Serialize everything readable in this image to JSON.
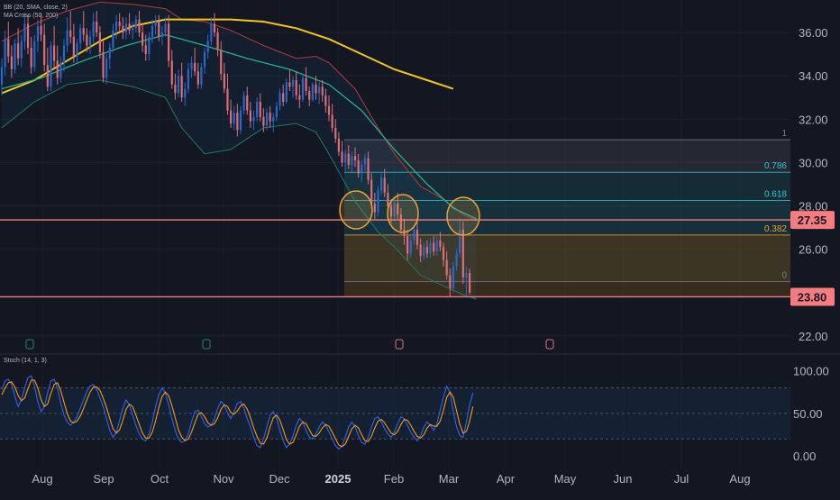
{
  "legend": {
    "bb_label": "BB (20, SMA, close, 2)",
    "ma_label": "MA Cross (50, 200)",
    "stoch_label": "Stoch (14, 1, 3)"
  },
  "colors": {
    "background": "#131722",
    "bull": "#2a67c9",
    "bear": "#e06d75",
    "ma200": "#f5c518",
    "ma50": "#22b38a",
    "bb": "#1f5f4f",
    "stoch_k": "#2962ff",
    "stoch_d": "#ff9800",
    "level_line": "#f77c80",
    "fib_band": "#8a5a14"
  },
  "chart_data": {
    "type": "candlestick",
    "x_ticks": [
      "Aug",
      "Sep",
      "Oct",
      "Nov",
      "Dec",
      "2025",
      "Feb",
      "Mar",
      "Apr",
      "May",
      "Jun",
      "Jul",
      "Aug"
    ],
    "y_ticks": [
      "36.00",
      "34.00",
      "32.00",
      "30.00",
      "28.00",
      "26.00",
      "22.00"
    ],
    "ylim": [
      21.2,
      37.5
    ],
    "price_labels": [
      {
        "id": "upper",
        "text": "27.35",
        "value": 27.35
      },
      {
        "id": "lower",
        "text": "23.80",
        "value": 23.8
      }
    ],
    "fib_levels": [
      {
        "label": "1",
        "value": 31.05
      },
      {
        "label": "0.786",
        "value": 29.55
      },
      {
        "label": "0.618",
        "value": 28.25
      },
      {
        "label": "0.382",
        "value": 26.65
      },
      {
        "label": "0",
        "value": 24.5
      }
    ],
    "candles_ohlc": [
      [
        33.6,
        34.8,
        33.1,
        34.4
      ],
      [
        34.4,
        36.1,
        34.0,
        35.7
      ],
      [
        35.7,
        36.5,
        34.6,
        34.9
      ],
      [
        34.9,
        35.4,
        33.9,
        34.3
      ],
      [
        34.3,
        35.7,
        34.1,
        35.5
      ],
      [
        35.5,
        36.2,
        34.5,
        34.8
      ],
      [
        34.8,
        35.9,
        34.4,
        35.6
      ],
      [
        35.6,
        36.9,
        35.2,
        36.4
      ],
      [
        36.4,
        36.8,
        35.0,
        35.3
      ],
      [
        35.3,
        35.8,
        34.1,
        34.4
      ],
      [
        34.4,
        35.9,
        34.2,
        35.6
      ],
      [
        35.6,
        36.6,
        35.1,
        36.3
      ],
      [
        36.3,
        36.9,
        35.6,
        35.9
      ],
      [
        35.9,
        36.4,
        34.2,
        34.5
      ],
      [
        34.5,
        35.3,
        33.3,
        33.5
      ],
      [
        33.5,
        35.6,
        33.3,
        35.4
      ],
      [
        35.4,
        36.3,
        34.4,
        34.7
      ],
      [
        34.7,
        35.4,
        33.6,
        33.9
      ],
      [
        33.9,
        34.9,
        33.7,
        34.6
      ],
      [
        34.6,
        35.7,
        34.2,
        35.4
      ],
      [
        35.4,
        36.7,
        35.1,
        36.1
      ],
      [
        36.1,
        37.0,
        35.5,
        35.8
      ],
      [
        35.8,
        36.4,
        34.6,
        34.9
      ],
      [
        34.9,
        35.7,
        34.6,
        35.5
      ],
      [
        35.5,
        36.4,
        35.2,
        36.2
      ],
      [
        36.2,
        37.0,
        35.6,
        35.9
      ],
      [
        35.9,
        36.2,
        35.1,
        35.4
      ],
      [
        35.4,
        36.1,
        35.0,
        35.8
      ],
      [
        35.8,
        36.9,
        35.5,
        36.5
      ],
      [
        36.5,
        37.0,
        35.8,
        36.0
      ],
      [
        36.0,
        36.3,
        34.8,
        35.1
      ],
      [
        35.1,
        35.6,
        33.7,
        33.9
      ],
      [
        33.9,
        35.0,
        33.6,
        34.8
      ],
      [
        34.8,
        35.5,
        34.3,
        35.3
      ],
      [
        35.3,
        36.4,
        35.1,
        36.1
      ],
      [
        36.1,
        36.8,
        35.7,
        36.5
      ],
      [
        36.5,
        36.9,
        36.0,
        36.3
      ],
      [
        36.3,
        36.7,
        35.7,
        36.0
      ],
      [
        36.0,
        36.7,
        35.7,
        36.4
      ],
      [
        36.4,
        36.9,
        35.9,
        36.1
      ],
      [
        36.1,
        36.5,
        35.7,
        36.2
      ],
      [
        36.2,
        36.8,
        36.0,
        36.6
      ],
      [
        36.6,
        37.0,
        35.8,
        36.0
      ],
      [
        36.0,
        36.4,
        35.1,
        35.4
      ],
      [
        35.4,
        35.9,
        34.7,
        35.0
      ],
      [
        35.0,
        36.0,
        34.7,
        35.8
      ],
      [
        35.8,
        36.6,
        35.5,
        36.3
      ],
      [
        36.3,
        36.8,
        35.9,
        36.5
      ],
      [
        36.5,
        36.8,
        35.6,
        35.8
      ],
      [
        35.8,
        36.3,
        35.4,
        36.0
      ],
      [
        36.0,
        36.7,
        35.8,
        36.4
      ],
      [
        36.4,
        36.8,
        34.4,
        34.7
      ],
      [
        34.7,
        35.2,
        33.4,
        33.6
      ],
      [
        33.6,
        34.1,
        32.9,
        33.2
      ],
      [
        33.2,
        34.3,
        33.0,
        34.0
      ],
      [
        34.0,
        34.6,
        32.8,
        33.0
      ],
      [
        33.0,
        33.7,
        32.6,
        33.4
      ],
      [
        33.4,
        34.6,
        33.2,
        34.3
      ],
      [
        34.3,
        34.9,
        33.9,
        34.6
      ],
      [
        34.6,
        35.3,
        34.0,
        34.2
      ],
      [
        34.2,
        34.6,
        33.4,
        33.6
      ],
      [
        33.6,
        34.6,
        33.4,
        34.4
      ],
      [
        34.4,
        35.3,
        34.1,
        35.1
      ],
      [
        35.1,
        35.9,
        34.8,
        35.6
      ],
      [
        35.6,
        36.7,
        35.4,
        36.4
      ],
      [
        36.4,
        36.9,
        35.8,
        36.0
      ],
      [
        36.0,
        36.2,
        34.9,
        35.2
      ],
      [
        35.2,
        35.6,
        33.8,
        34.1
      ],
      [
        34.1,
        34.6,
        33.2,
        33.4
      ],
      [
        33.4,
        34.1,
        32.2,
        32.4
      ],
      [
        32.4,
        32.9,
        31.6,
        31.8
      ],
      [
        31.8,
        32.6,
        31.5,
        32.3
      ],
      [
        32.3,
        32.7,
        31.2,
        31.5
      ],
      [
        31.5,
        32.6,
        31.3,
        32.4
      ],
      [
        32.4,
        33.3,
        32.2,
        33.1
      ],
      [
        33.1,
        33.5,
        32.2,
        32.4
      ],
      [
        32.4,
        32.8,
        31.6,
        31.9
      ],
      [
        31.9,
        32.4,
        31.5,
        32.1
      ],
      [
        32.1,
        33.0,
        31.9,
        32.8
      ],
      [
        32.8,
        33.2,
        31.9,
        32.1
      ],
      [
        32.1,
        32.5,
        31.4,
        31.7
      ],
      [
        31.7,
        32.5,
        31.5,
        32.3
      ],
      [
        32.3,
        32.6,
        31.6,
        31.9
      ],
      [
        31.9,
        32.3,
        31.4,
        32.1
      ],
      [
        32.1,
        32.8,
        31.9,
        32.6
      ],
      [
        32.6,
        33.4,
        32.4,
        33.2
      ],
      [
        33.2,
        33.6,
        32.6,
        32.8
      ],
      [
        32.8,
        33.9,
        32.7,
        33.7
      ],
      [
        33.7,
        34.3,
        33.3,
        33.5
      ],
      [
        33.5,
        34.0,
        33.0,
        33.8
      ],
      [
        33.8,
        34.2,
        32.9,
        33.1
      ],
      [
        33.1,
        33.6,
        32.5,
        32.9
      ],
      [
        32.9,
        34.1,
        32.8,
        33.9
      ],
      [
        33.9,
        34.4,
        33.1,
        33.3
      ],
      [
        33.3,
        33.5,
        32.6,
        32.9
      ],
      [
        32.9,
        33.7,
        32.8,
        33.6
      ],
      [
        33.6,
        34.0,
        32.9,
        33.2
      ],
      [
        33.2,
        33.7,
        32.7,
        33.5
      ],
      [
        33.5,
        33.8,
        32.8,
        33.1
      ],
      [
        33.1,
        33.4,
        32.3,
        32.6
      ],
      [
        32.6,
        33.1,
        31.9,
        32.2
      ],
      [
        32.2,
        32.7,
        31.4,
        31.6
      ],
      [
        31.6,
        32.0,
        30.9,
        31.1
      ],
      [
        31.1,
        31.4,
        30.3,
        30.5
      ],
      [
        30.5,
        31.0,
        29.8,
        30.0
      ],
      [
        30.0,
        30.6,
        29.6,
        30.4
      ],
      [
        30.4,
        30.8,
        29.7,
        29.9
      ],
      [
        29.9,
        30.5,
        29.5,
        30.3
      ],
      [
        30.3,
        30.7,
        29.8,
        30.1
      ],
      [
        30.1,
        30.4,
        29.3,
        29.5
      ],
      [
        29.5,
        30.1,
        29.1,
        29.9
      ],
      [
        29.9,
        30.4,
        29.6,
        30.2
      ],
      [
        30.2,
        30.5,
        29.0,
        29.2
      ],
      [
        29.2,
        29.5,
        27.9,
        28.1
      ],
      [
        28.1,
        28.6,
        27.4,
        27.7
      ],
      [
        27.7,
        28.9,
        27.5,
        28.7
      ],
      [
        28.7,
        29.5,
        28.5,
        29.3
      ],
      [
        29.3,
        29.7,
        28.4,
        28.6
      ],
      [
        28.6,
        29.0,
        27.8,
        28.0
      ],
      [
        28.0,
        28.3,
        27.2,
        27.5
      ],
      [
        27.5,
        28.4,
        27.3,
        28.1
      ],
      [
        28.1,
        28.6,
        27.4,
        27.6
      ],
      [
        27.6,
        27.9,
        26.7,
        26.9
      ],
      [
        26.9,
        27.4,
        26.2,
        26.6
      ],
      [
        26.6,
        26.9,
        25.5,
        25.8
      ],
      [
        25.8,
        26.6,
        25.6,
        26.4
      ],
      [
        26.4,
        27.1,
        26.2,
        26.9
      ],
      [
        26.9,
        27.3,
        26.0,
        26.2
      ],
      [
        26.2,
        26.5,
        25.4,
        25.7
      ],
      [
        25.7,
        26.3,
        25.5,
        26.1
      ],
      [
        26.1,
        26.4,
        25.6,
        25.8
      ],
      [
        25.8,
        26.5,
        25.6,
        26.3
      ],
      [
        26.3,
        26.6,
        25.7,
        25.9
      ],
      [
        25.9,
        26.6,
        25.7,
        26.4
      ],
      [
        26.4,
        26.8,
        25.9,
        26.1
      ],
      [
        26.1,
        26.3,
        25.2,
        25.5
      ],
      [
        25.5,
        25.9,
        24.6,
        24.8
      ],
      [
        24.8,
        25.1,
        23.8,
        24.2
      ],
      [
        24.2,
        25.4,
        24.0,
        25.2
      ],
      [
        25.2,
        26.0,
        25.0,
        25.8
      ],
      [
        25.8,
        27.4,
        25.6,
        26.9
      ],
      [
        26.9,
        27.3,
        24.4,
        24.7
      ],
      [
        24.7,
        25.2,
        23.9,
        24.9
      ],
      [
        24.9,
        25.1,
        23.9,
        24.0
      ]
    ],
    "ma50": [
      [
        0,
        33.4
      ],
      [
        12,
        33.9
      ],
      [
        25,
        34.7
      ],
      [
        38,
        35.4
      ],
      [
        50,
        35.9
      ],
      [
        62,
        35.4
      ],
      [
        75,
        34.8
      ],
      [
        88,
        34.3
      ],
      [
        100,
        33.6
      ],
      [
        110,
        32.4
      ],
      [
        120,
        30.6
      ],
      [
        130,
        29.0
      ],
      [
        138,
        27.9
      ],
      [
        145,
        27.4
      ]
    ],
    "ma200": [
      [
        0,
        33.2
      ],
      [
        10,
        33.8
      ],
      [
        20,
        34.7
      ],
      [
        30,
        35.6
      ],
      [
        40,
        36.3
      ],
      [
        50,
        36.6
      ],
      [
        60,
        36.6
      ],
      [
        70,
        36.6
      ],
      [
        80,
        36.5
      ],
      [
        90,
        36.2
      ],
      [
        100,
        35.7
      ],
      [
        110,
        35.0
      ],
      [
        120,
        34.3
      ],
      [
        130,
        33.8
      ],
      [
        138,
        33.4
      ]
    ],
    "bb_upper": [
      [
        0,
        35.6
      ],
      [
        10,
        36.4
      ],
      [
        20,
        37.0
      ],
      [
        30,
        37.4
      ],
      [
        40,
        37.3
      ],
      [
        50,
        37.1
      ],
      [
        55,
        36.6
      ],
      [
        62,
        36.5
      ],
      [
        70,
        36.1
      ],
      [
        80,
        35.4
      ],
      [
        90,
        34.8
      ],
      [
        96,
        34.9
      ],
      [
        100,
        34.6
      ],
      [
        108,
        33.4
      ],
      [
        115,
        31.6
      ],
      [
        120,
        30.4
      ],
      [
        128,
        28.9
      ],
      [
        135,
        28.3
      ],
      [
        141,
        27.6
      ],
      [
        145,
        27.3
      ]
    ],
    "bb_lower": [
      [
        0,
        31.6
      ],
      [
        10,
        32.8
      ],
      [
        20,
        33.6
      ],
      [
        30,
        33.8
      ],
      [
        40,
        33.5
      ],
      [
        50,
        33.0
      ],
      [
        55,
        31.6
      ],
      [
        62,
        30.4
      ],
      [
        70,
        30.6
      ],
      [
        80,
        31.6
      ],
      [
        90,
        31.8
      ],
      [
        96,
        31.4
      ],
      [
        100,
        30.4
      ],
      [
        108,
        28.2
      ],
      [
        115,
        26.8
      ],
      [
        120,
        26.1
      ],
      [
        128,
        24.8
      ],
      [
        135,
        24.3
      ],
      [
        141,
        23.9
      ],
      [
        145,
        23.7
      ]
    ],
    "stoch": {
      "y_ticks": [
        "100.00",
        "50.00",
        "0.00"
      ],
      "ylim": [
        -4,
        108
      ],
      "k": [
        78,
        88,
        90,
        84,
        70,
        58,
        66,
        80,
        92,
        94,
        82,
        64,
        52,
        58,
        74,
        88,
        90,
        80,
        62,
        48,
        40,
        36,
        40,
        46,
        56,
        66,
        76,
        82,
        84,
        78,
        68,
        58,
        44,
        30,
        22,
        28,
        42,
        56,
        66,
        60,
        48,
        36,
        26,
        20,
        18,
        26,
        40,
        58,
        72,
        80,
        74,
        60,
        44,
        30,
        20,
        16,
        18,
        26,
        40,
        52,
        54,
        46,
        38,
        34,
        36,
        44,
        56,
        64,
        60,
        50,
        44,
        52,
        62,
        64,
        56,
        44,
        34,
        22,
        12,
        10,
        20,
        34,
        48,
        52,
        44,
        30,
        18,
        10,
        14,
        24,
        36,
        44,
        40,
        30,
        22,
        20,
        26,
        34,
        40,
        36,
        28,
        20,
        12,
        8,
        12,
        22,
        34,
        40,
        34,
        24,
        16,
        14,
        22,
        34,
        44,
        46,
        40,
        32,
        26,
        22,
        28,
        38,
        46,
        44,
        36,
        28,
        22,
        18,
        24,
        34,
        40,
        36,
        30,
        38,
        54,
        70,
        82,
        74,
        52,
        34,
        24,
        22,
        40,
        60,
        74
      ],
      "d": [
        72,
        80,
        86,
        87,
        81,
        71,
        65,
        68,
        79,
        89,
        89,
        80,
        66,
        58,
        61,
        73,
        84,
        86,
        77,
        63,
        50,
        41,
        39,
        41,
        47,
        56,
        66,
        75,
        81,
        81,
        77,
        68,
        57,
        44,
        32,
        27,
        31,
        42,
        55,
        61,
        58,
        48,
        37,
        27,
        21,
        21,
        28,
        41,
        57,
        70,
        75,
        71,
        59,
        45,
        31,
        22,
        18,
        20,
        28,
        39,
        49,
        51,
        46,
        39,
        36,
        38,
        45,
        55,
        60,
        58,
        51,
        49,
        53,
        59,
        61,
        55,
        45,
        33,
        23,
        15,
        14,
        21,
        34,
        45,
        48,
        42,
        31,
        19,
        14,
        16,
        25,
        35,
        40,
        38,
        31,
        24,
        23,
        27,
        33,
        37,
        35,
        28,
        20,
        13,
        11,
        14,
        23,
        32,
        36,
        33,
        25,
        18,
        17,
        23,
        33,
        41,
        43,
        39,
        33,
        27,
        25,
        29,
        37,
        43,
        42,
        36,
        29,
        23,
        21,
        25,
        33,
        37,
        35,
        35,
        41,
        54,
        69,
        75,
        69,
        53,
        37,
        27,
        29,
        41,
        58
      ]
    }
  }
}
